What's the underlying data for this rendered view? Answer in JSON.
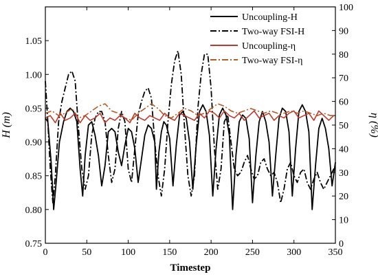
{
  "chart_data": {
    "type": "line",
    "xlabel": "Timestep",
    "ylabel_left": "H (m)",
    "ylabel_right": "η (%)",
    "xlim": [
      0,
      350
    ],
    "ylim_left": [
      0.75,
      1.1
    ],
    "ylim_right": [
      0,
      100
    ],
    "x_ticks": [
      0,
      50,
      100,
      150,
      200,
      250,
      300,
      350
    ],
    "y_left_ticks": [
      0.75,
      0.8,
      0.85,
      0.9,
      0.95,
      1.0,
      1.05
    ],
    "y_right_ticks": [
      0,
      10,
      20,
      30,
      40,
      50,
      60,
      70,
      80,
      90,
      100
    ],
    "grid": false,
    "legend_position": "top-right",
    "series": [
      {
        "name": "Uncoupling-H",
        "axis": "left",
        "color": "#000000",
        "style": "solid",
        "x": [
          0,
          3,
          7,
          10,
          13,
          17,
          22,
          26,
          30,
          34,
          38,
          42,
          45,
          48,
          52,
          56,
          60,
          64,
          68,
          72,
          76,
          80,
          84,
          88,
          92,
          96,
          100,
          104,
          108,
          112,
          116,
          120,
          124,
          128,
          132,
          134,
          137,
          140,
          143,
          146,
          150,
          154,
          158,
          162,
          166,
          170,
          174,
          178,
          182,
          186,
          190,
          194,
          198,
          202,
          206,
          210,
          214,
          218,
          222,
          226,
          230,
          234,
          238,
          242,
          246,
          250,
          254,
          258,
          262,
          266,
          270,
          274,
          278,
          282,
          286,
          290,
          294,
          298,
          302,
          306,
          310,
          314,
          318,
          322,
          326,
          330,
          334,
          338,
          342,
          346,
          350
        ],
        "values": [
          0.935,
          0.93,
          0.87,
          0.8,
          0.84,
          0.9,
          0.93,
          0.945,
          0.95,
          0.945,
          0.93,
          0.86,
          0.82,
          0.88,
          0.925,
          0.93,
          0.91,
          0.88,
          0.835,
          0.865,
          0.915,
          0.92,
          0.915,
          0.885,
          0.865,
          0.895,
          0.92,
          0.915,
          0.89,
          0.84,
          0.875,
          0.91,
          0.925,
          0.92,
          0.9,
          0.83,
          0.885,
          0.915,
          0.93,
          0.925,
          0.905,
          0.835,
          0.895,
          0.94,
          0.945,
          0.935,
          0.9,
          0.83,
          0.895,
          0.945,
          0.955,
          0.945,
          0.91,
          0.82,
          0.89,
          0.94,
          0.95,
          0.94,
          0.91,
          0.8,
          0.88,
          0.93,
          0.94,
          0.935,
          0.905,
          0.81,
          0.88,
          0.93,
          0.945,
          0.93,
          0.9,
          0.82,
          0.88,
          0.935,
          0.95,
          0.945,
          0.915,
          0.82,
          0.89,
          0.945,
          0.955,
          0.945,
          0.915,
          0.8,
          0.865,
          0.92,
          0.935,
          0.92,
          0.89,
          0.835,
          0.87
        ]
      },
      {
        "name": "Two-way FSI-H",
        "axis": "left",
        "color": "#000000",
        "style": "dashdot",
        "x": [
          0,
          3,
          6,
          9,
          12,
          16,
          20,
          24,
          28,
          32,
          36,
          40,
          44,
          48,
          52,
          56,
          60,
          64,
          68,
          72,
          76,
          80,
          84,
          88,
          92,
          96,
          100,
          104,
          108,
          112,
          116,
          120,
          124,
          128,
          132,
          136,
          140,
          144,
          148,
          152,
          156,
          160,
          164,
          168,
          172,
          176,
          180,
          184,
          188,
          192,
          196,
          200,
          204,
          208,
          212,
          216,
          220,
          224,
          228,
          232,
          236,
          240,
          244,
          248,
          252,
          256,
          260,
          264,
          268,
          272,
          276,
          280,
          284,
          288,
          292,
          296,
          300,
          304,
          308,
          312,
          316,
          320,
          324,
          328,
          332,
          336,
          340,
          344,
          348,
          350
        ],
        "values": [
          0.99,
          0.93,
          0.86,
          0.81,
          0.85,
          0.93,
          0.96,
          0.98,
          1.0,
          1.005,
          0.99,
          0.92,
          0.86,
          0.83,
          0.85,
          0.91,
          0.935,
          0.945,
          0.945,
          0.93,
          0.88,
          0.84,
          0.86,
          0.92,
          0.945,
          0.93,
          0.86,
          0.84,
          0.89,
          0.94,
          0.96,
          0.975,
          0.98,
          0.965,
          0.9,
          0.85,
          0.82,
          0.86,
          0.93,
          0.985,
          1.02,
          1.035,
          1.0,
          0.92,
          0.85,
          0.82,
          0.85,
          0.95,
          1.0,
          1.03,
          1.03,
          0.98,
          0.89,
          0.83,
          0.86,
          0.93,
          0.94,
          0.9,
          0.86,
          0.85,
          0.855,
          0.87,
          0.88,
          0.86,
          0.845,
          0.85,
          0.87,
          0.875,
          0.86,
          0.85,
          0.855,
          0.84,
          0.81,
          0.83,
          0.86,
          0.87,
          0.85,
          0.84,
          0.855,
          0.86,
          0.84,
          0.83,
          0.845,
          0.855,
          0.84,
          0.83,
          0.84,
          0.85,
          0.86,
          0.86
        ]
      },
      {
        "name": "Uncoupling-η",
        "axis": "right",
        "color": "#c0392b",
        "style": "solid",
        "x": [
          0,
          6,
          12,
          18,
          24,
          30,
          36,
          42,
          48,
          54,
          60,
          66,
          72,
          78,
          84,
          90,
          96,
          102,
          108,
          114,
          120,
          126,
          132,
          138,
          144,
          150,
          156,
          162,
          168,
          174,
          180,
          186,
          192,
          198,
          204,
          210,
          216,
          222,
          228,
          234,
          240,
          246,
          252,
          258,
          264,
          270,
          276,
          282,
          288,
          294,
          300,
          306,
          312,
          318,
          324,
          330,
          336,
          342,
          348,
          350
        ],
        "values": [
          53,
          54,
          51,
          55,
          52,
          53,
          55,
          51,
          54,
          52,
          53,
          55,
          51,
          53,
          52,
          54,
          53,
          51,
          55,
          53,
          52,
          54,
          53,
          52,
          55,
          53,
          52,
          55,
          54,
          53,
          52,
          55,
          53,
          56,
          55,
          53,
          56,
          54,
          53,
          55,
          52,
          54,
          56,
          53,
          54,
          55,
          52,
          54,
          53,
          55,
          56,
          53,
          54,
          55,
          52,
          56,
          54,
          52,
          54,
          54
        ]
      },
      {
        "name": "Two-way FSI-η",
        "axis": "right",
        "color": "#b35a1f",
        "style": "dashdot",
        "x": [
          0,
          8,
          16,
          24,
          32,
          40,
          48,
          56,
          64,
          72,
          80,
          88,
          96,
          104,
          112,
          120,
          128,
          136,
          144,
          152,
          160,
          168,
          176,
          184,
          192,
          200,
          208,
          216,
          224,
          232,
          240,
          248,
          256,
          264,
          272,
          280,
          288,
          296,
          304,
          312,
          320,
          328,
          336,
          344,
          350
        ],
        "values": [
          55,
          56,
          54,
          55,
          57,
          53,
          54,
          56,
          58,
          59,
          56,
          55,
          53,
          52,
          55,
          57,
          59,
          57,
          54,
          53,
          55,
          57,
          56,
          54,
          55,
          57,
          59,
          58,
          56,
          55,
          56,
          57,
          56,
          55,
          56,
          55,
          55,
          56,
          55,
          56,
          55,
          54,
          55,
          54,
          54
        ]
      }
    ]
  }
}
